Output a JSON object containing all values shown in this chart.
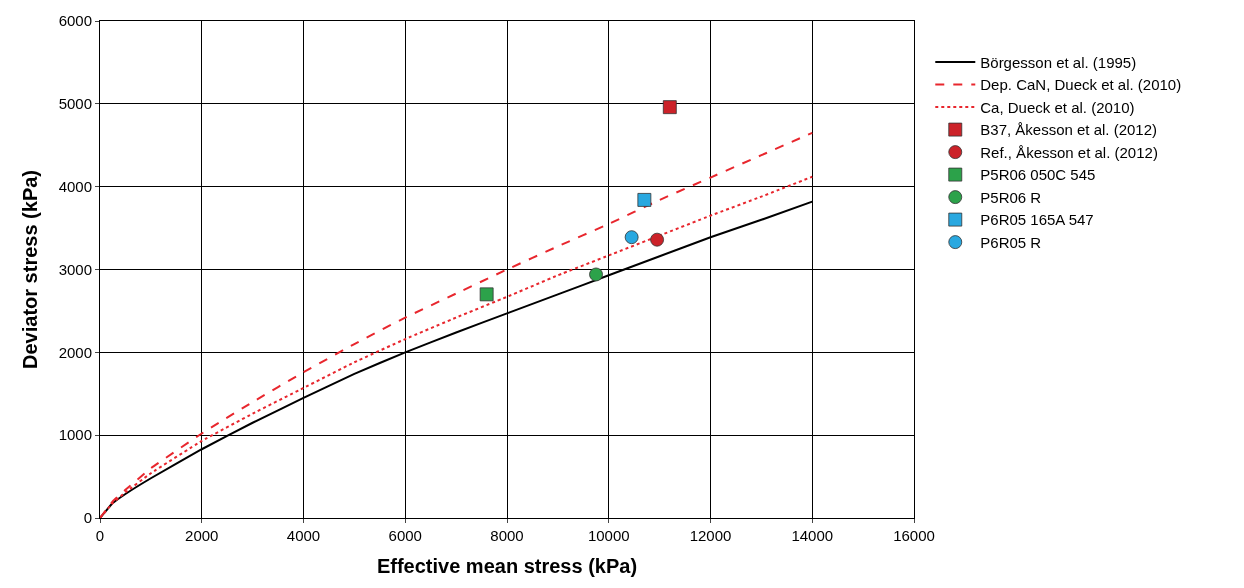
{
  "chart_data": {
    "type": "line",
    "xlabel": "Effective mean stress (kPa)",
    "ylabel": "Deviator stress (kPa)",
    "xlim": [
      0,
      16000
    ],
    "xticks": [
      0,
      2000,
      4000,
      6000,
      8000,
      10000,
      12000,
      14000,
      16000
    ],
    "ylim": [
      0,
      6000
    ],
    "yticks": [
      0,
      1000,
      2000,
      3000,
      4000,
      5000,
      6000
    ],
    "grid": true,
    "legend": "top right",
    "series": [
      {
        "name": "Börgesson et al. (1995)",
        "line_style": "solid",
        "color": "#000000",
        "x": [
          0,
          250,
          500,
          1000,
          2000,
          3000,
          4000,
          5000,
          6000,
          7000,
          8000,
          9000,
          10000,
          11000,
          12000,
          13000,
          14000
        ],
        "values": [
          0,
          180,
          290,
          480,
          830,
          1150,
          1450,
          1740,
          2000,
          2240,
          2470,
          2700,
          2930,
          3160,
          3390,
          3600,
          3820
        ]
      },
      {
        "name": "Dep. CaN, Dueck et al. (2010)",
        "line_style": "dashed",
        "color": "#e8262d",
        "x": [
          0,
          250,
          500,
          1000,
          2000,
          3000,
          4000,
          5000,
          6000,
          7000,
          8000,
          9000,
          10000,
          11000,
          12000,
          13000,
          14000
        ],
        "values": [
          0,
          200,
          340,
          600,
          1020,
          1400,
          1760,
          2100,
          2420,
          2710,
          3000,
          3280,
          3550,
          3840,
          4110,
          4380,
          4650
        ]
      },
      {
        "name": "Ca, Dueck et al. (2010)",
        "line_style": "dotted",
        "color": "#e8262d",
        "x": [
          0,
          250,
          500,
          1000,
          2000,
          3000,
          4000,
          5000,
          6000,
          7000,
          8000,
          9000,
          10000,
          11000,
          12000,
          13000,
          14000
        ],
        "values": [
          0,
          180,
          310,
          540,
          930,
          1260,
          1570,
          1880,
          2160,
          2420,
          2670,
          2930,
          3170,
          3410,
          3650,
          3880,
          4120
        ]
      },
      {
        "name": "B37, Åkesson et al. (2012)",
        "type": "scatter",
        "marker": "square",
        "color": "#cc2229",
        "x": [
          11200
        ],
        "values": [
          4960
        ]
      },
      {
        "name": "Ref., Åkesson et al. (2012)",
        "type": "scatter",
        "marker": "circle",
        "color": "#cc2229",
        "x": [
          10950
        ],
        "values": [
          3360
        ]
      },
      {
        "name": "P5R06 050C 545",
        "type": "scatter",
        "marker": "square",
        "color": "#2ca24a",
        "x": [
          7600
        ],
        "values": [
          2700
        ]
      },
      {
        "name": "P5R06 R",
        "type": "scatter",
        "marker": "circle",
        "color": "#2ca24a",
        "x": [
          9750
        ],
        "values": [
          2940
        ]
      },
      {
        "name": "P6R05 165A 547",
        "type": "scatter",
        "marker": "square",
        "color": "#29a8e0",
        "x": [
          10700
        ],
        "values": [
          3840
        ]
      },
      {
        "name": "P6R05 R",
        "type": "scatter",
        "marker": "circle",
        "color": "#29a8e0",
        "x": [
          10450
        ],
        "values": [
          3390
        ]
      }
    ]
  }
}
